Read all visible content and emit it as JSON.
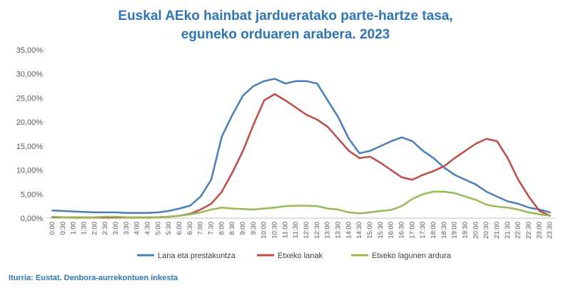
{
  "title_line1": "Euskal AEko hainbat jardueratako parte-hartze tasa,",
  "title_line2": "eguneko orduaren arabera. 2023",
  "source": "Iturria: Eustat. Denbora-aurrekontuen inkesta",
  "chart_data": {
    "type": "line",
    "title": "Euskal AEko hainbat jardueratako parte-hartze tasa, eguneko orduaren arabera. 2023",
    "xlabel": "",
    "ylabel": "",
    "ylim": [
      0,
      35
    ],
    "yticks": [
      "0,00%",
      "5,00%",
      "10,00%",
      "15,00%",
      "20,00%",
      "25,00%",
      "30,00%",
      "35,00%"
    ],
    "grid": false,
    "legend_position": "bottom",
    "x": [
      "0:00",
      "0:30",
      "1:00",
      "1:30",
      "2:00",
      "2:30",
      "3:00",
      "3:30",
      "4:00",
      "4:30",
      "5:00",
      "5:30",
      "6:00",
      "6:30",
      "7:00",
      "7:30",
      "8:00",
      "8:30",
      "9:00",
      "9:30",
      "10:00",
      "10:30",
      "11:00",
      "11:30",
      "12:00",
      "12:30",
      "13:00",
      "13:30",
      "14:00",
      "14:30",
      "15:00",
      "15:30",
      "16:00",
      "16:30",
      "17:00",
      "17:30",
      "18:00",
      "18:30",
      "19:00",
      "19:30",
      "20:00",
      "20:30",
      "21:00",
      "21:30",
      "22:00",
      "22:30",
      "23:00",
      "23:30"
    ],
    "series": [
      {
        "name": "Lana eta prestakuntza",
        "color": "#4A7EBB",
        "values": [
          1.6,
          1.5,
          1.4,
          1.3,
          1.2,
          1.2,
          1.2,
          1.1,
          1.1,
          1.1,
          1.2,
          1.5,
          2.0,
          2.6,
          4.5,
          8.0,
          17.0,
          21.5,
          25.5,
          27.5,
          28.5,
          29.0,
          28.0,
          28.5,
          28.5,
          28.0,
          24.5,
          21.0,
          16.5,
          13.5,
          14.0,
          15.0,
          16.0,
          16.8,
          16.0,
          14.0,
          12.5,
          10.5,
          9.0,
          8.0,
          7.0,
          5.5,
          4.5,
          3.5,
          3.0,
          2.2,
          1.8,
          1.2
        ]
      },
      {
        "name": "Etxeko lanak",
        "color": "#BE4B48",
        "values": [
          0.2,
          0.2,
          0.1,
          0.1,
          0.1,
          0.1,
          0.1,
          0.1,
          0.1,
          0.1,
          0.2,
          0.3,
          0.5,
          0.9,
          1.8,
          3.0,
          5.5,
          9.5,
          14.0,
          19.5,
          24.5,
          25.8,
          24.5,
          23.0,
          21.5,
          20.5,
          19.0,
          16.5,
          14.0,
          12.5,
          12.8,
          11.5,
          10.0,
          8.5,
          8.0,
          9.0,
          9.8,
          10.8,
          12.5,
          14.0,
          15.5,
          16.5,
          16.0,
          12.5,
          8.0,
          4.5,
          1.5,
          0.5
        ]
      },
      {
        "name": "Etxeko lagunen ardura",
        "color": "#98B954",
        "values": [
          0.3,
          0.2,
          0.2,
          0.2,
          0.2,
          0.3,
          0.3,
          0.2,
          0.2,
          0.2,
          0.2,
          0.3,
          0.5,
          0.8,
          1.2,
          1.8,
          2.2,
          2.0,
          1.9,
          1.8,
          2.0,
          2.2,
          2.5,
          2.6,
          2.6,
          2.5,
          2.0,
          1.8,
          1.2,
          1.0,
          1.2,
          1.5,
          1.7,
          2.5,
          4.0,
          5.0,
          5.5,
          5.5,
          5.2,
          4.5,
          3.8,
          2.8,
          2.4,
          2.2,
          1.8,
          1.2,
          0.8,
          0.5
        ]
      }
    ]
  }
}
